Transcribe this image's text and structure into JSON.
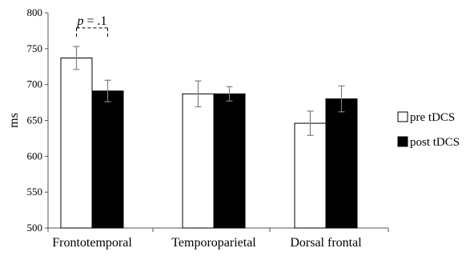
{
  "chart_data": {
    "type": "bar",
    "title": "",
    "xlabel": "",
    "ylabel": "ms",
    "ylim": [
      500,
      800
    ],
    "yticks": [
      500,
      550,
      600,
      650,
      700,
      750,
      800
    ],
    "grid": false,
    "legend_position": "right",
    "categories": [
      "Frontotemporal",
      "Temporoparietal",
      "Dorsal frontal"
    ],
    "series": [
      {
        "name": "pre tDCS",
        "fill": "#ffffff",
        "stroke": "#000000",
        "values": [
          737,
          687,
          646
        ],
        "errors": [
          16,
          18,
          17
        ]
      },
      {
        "name": "post tDCS",
        "fill": "#000000",
        "stroke": "#000000",
        "values": [
          691,
          687,
          680
        ],
        "errors": [
          15,
          10,
          18
        ]
      }
    ],
    "annotations": [
      {
        "italic_text": "p",
        "text": " = .1",
        "category_index": 0,
        "bracket_y_value": 779
      }
    ]
  }
}
